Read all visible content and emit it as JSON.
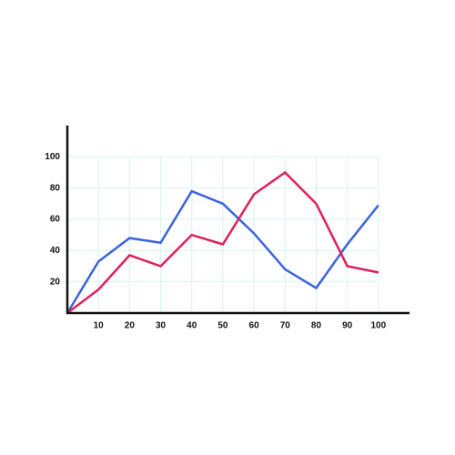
{
  "chart_data": {
    "type": "line",
    "x": [
      0,
      10,
      20,
      30,
      40,
      50,
      60,
      70,
      80,
      90,
      100
    ],
    "series": [
      {
        "color": "#3a63e0",
        "values": [
          0,
          33,
          48,
          45,
          78,
          70,
          51,
          28,
          16,
          44,
          69
        ]
      },
      {
        "color": "#e0205a",
        "values": [
          0,
          15,
          37,
          30,
          50,
          44,
          76,
          90,
          70,
          30,
          26
        ]
      }
    ],
    "xlim": [
      0,
      110
    ],
    "ylim": [
      0,
      120
    ],
    "xticks": [
      10,
      20,
      30,
      40,
      50,
      60,
      70,
      80,
      90,
      100
    ],
    "yticks": [
      20,
      40,
      60,
      80,
      100
    ],
    "grid": true
  }
}
